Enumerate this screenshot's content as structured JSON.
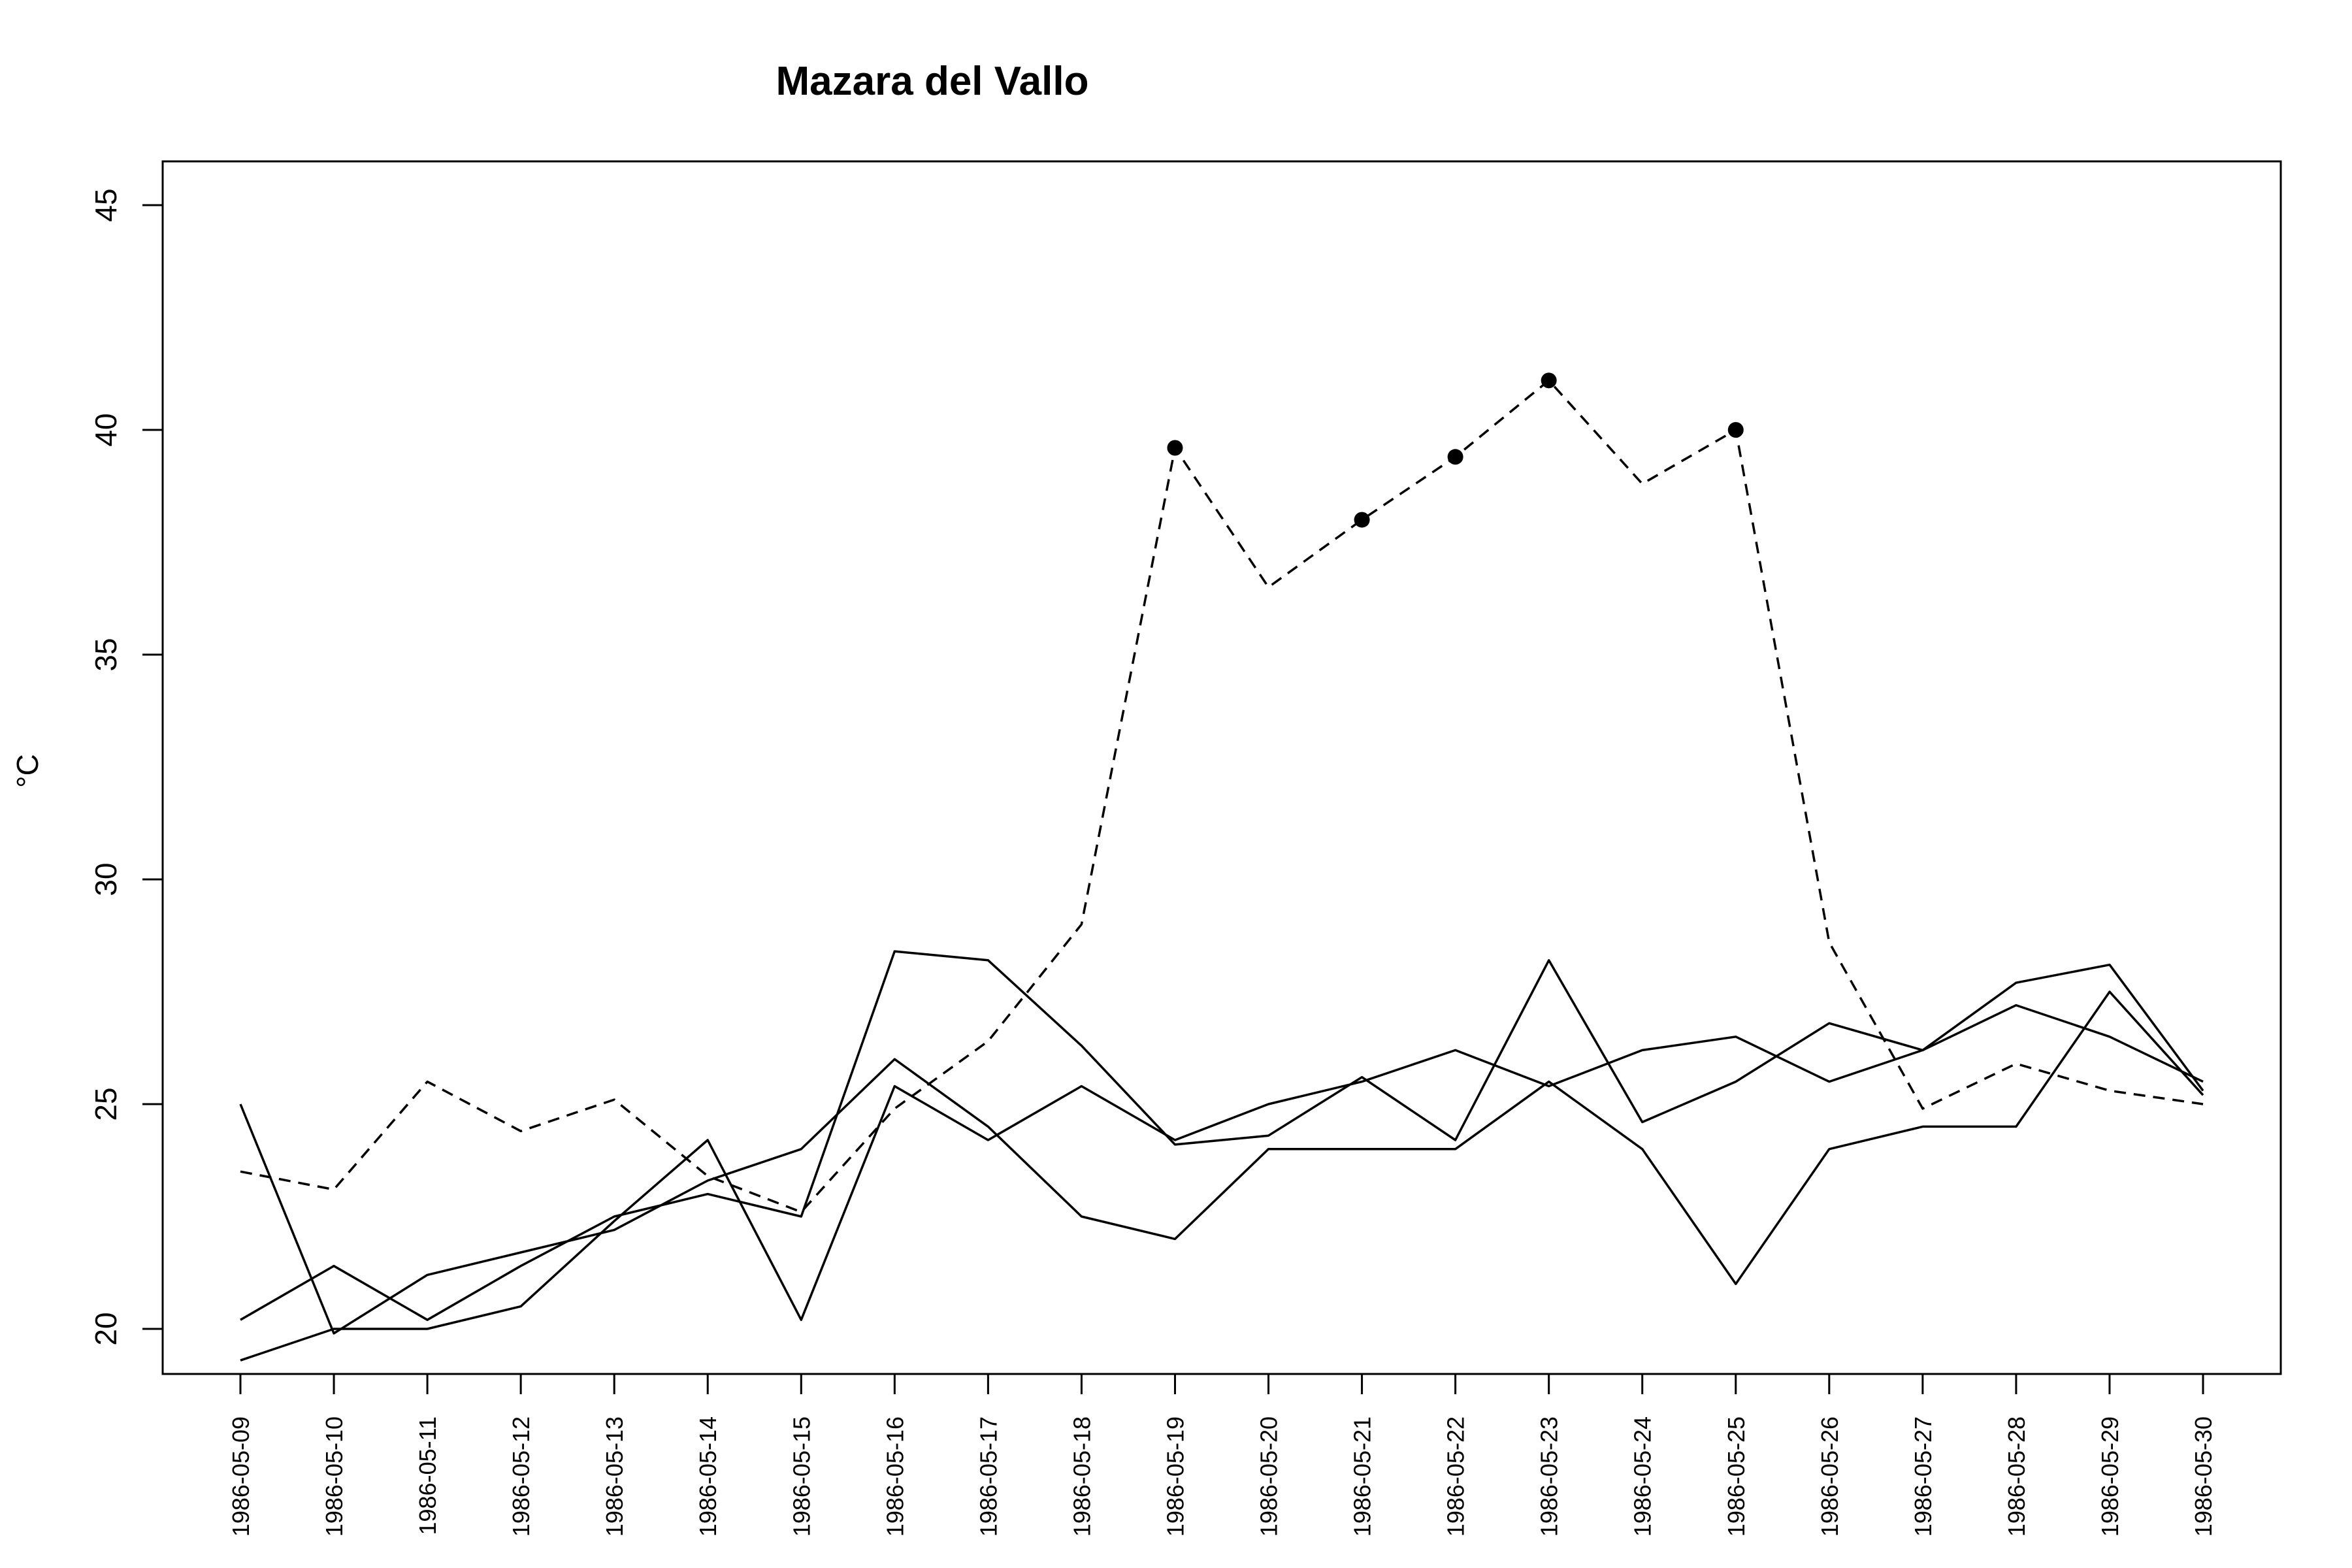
{
  "chart_data": {
    "type": "line",
    "title": "Mazara del Vallo",
    "xlabel": "",
    "ylabel": "°C",
    "x": [
      "1986-05-09",
      "1986-05-10",
      "1986-05-11",
      "1986-05-12",
      "1986-05-13",
      "1986-05-14",
      "1986-05-15",
      "1986-05-16",
      "1986-05-17",
      "1986-05-18",
      "1986-05-19",
      "1986-05-20",
      "1986-05-21",
      "1986-05-22",
      "1986-05-23",
      "1986-05-24",
      "1986-05-25",
      "1986-05-26",
      "1986-05-27",
      "1986-05-28",
      "1986-05-29",
      "1986-05-30"
    ],
    "yticks": [
      20,
      25,
      30,
      35,
      40,
      45
    ],
    "ylim": [
      19,
      46
    ],
    "grid": false,
    "legend": "none",
    "series": [
      {
        "style": "dashed",
        "values": [
          23.5,
          23.1,
          25.5,
          24.4,
          25.1,
          23.4,
          22.6,
          24.9,
          26.4,
          29.0,
          39.6,
          36.5,
          38.0,
          39.4,
          41.1,
          38.8,
          40.0,
          28.6,
          24.9,
          25.9,
          25.3,
          25.0
        ],
        "markers_at": [
          "1986-05-19",
          "1986-05-21",
          "1986-05-22",
          "1986-05-23",
          "1986-05-25"
        ]
      },
      {
        "style": "solid",
        "values": [
          25.0,
          19.9,
          21.2,
          21.7,
          22.2,
          23.3,
          24.0,
          26.0,
          24.5,
          22.5,
          22.0,
          24.0,
          24.0,
          24.0,
          25.5,
          24.0,
          21.0,
          24.0,
          24.5,
          24.5,
          27.5,
          25.2
        ]
      },
      {
        "style": "solid",
        "values": [
          20.2,
          21.4,
          20.2,
          21.4,
          22.5,
          23.0,
          22.5,
          28.4,
          28.2,
          26.3,
          24.1,
          24.3,
          25.6,
          24.2,
          28.2,
          24.6,
          25.5,
          26.8,
          26.2,
          27.7,
          28.1,
          25.3
        ]
      },
      {
        "style": "solid",
        "values": [
          19.3,
          20.0,
          20.0,
          20.5,
          22.4,
          24.2,
          20.2,
          25.4,
          24.2,
          25.4,
          24.2,
          25.0,
          25.5,
          26.2,
          25.4,
          26.2,
          26.5,
          25.5,
          26.2,
          27.2,
          26.5,
          25.5
        ]
      }
    ]
  }
}
